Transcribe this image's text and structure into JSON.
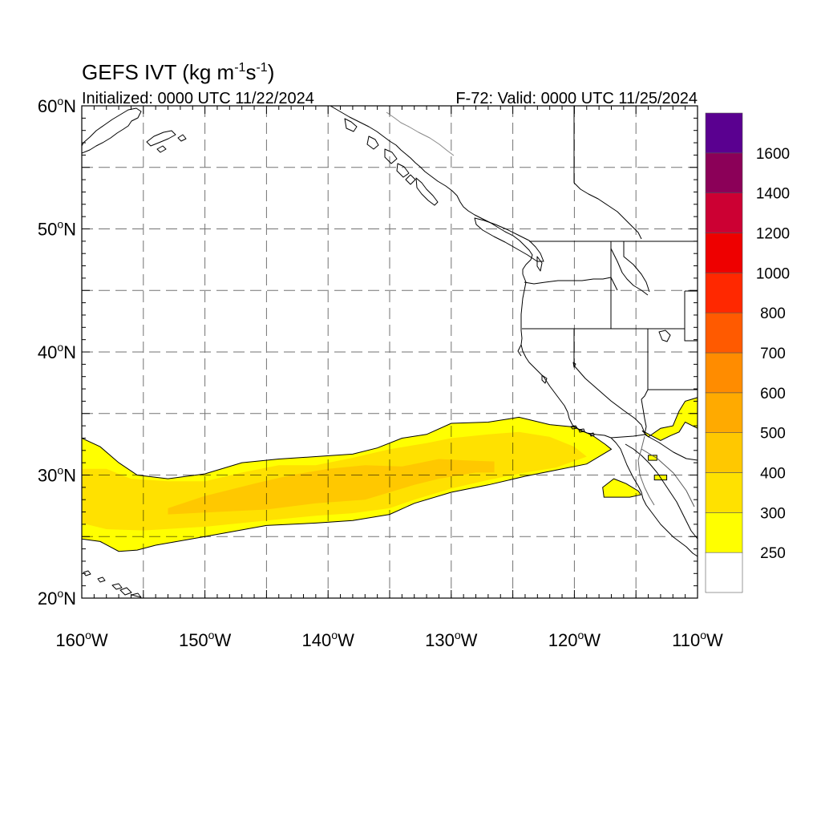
{
  "title": {
    "main": "GEFS IVT (kg m",
    "sup1": "-1",
    "mid": "s",
    "sup2": "-1",
    "close": ")"
  },
  "initialized": "Initialized: 0000 UTC 11/22/2024",
  "valid": "F-72: Valid: 0000 UTC 11/25/2024",
  "map": {
    "lon_range": [
      -160,
      -110
    ],
    "lat_range": [
      20,
      60
    ],
    "lon_labels": [
      {
        "lon": -160,
        "text": "160",
        "hemi": "W"
      },
      {
        "lon": -150,
        "text": "150",
        "hemi": "W"
      },
      {
        "lon": -140,
        "text": "140",
        "hemi": "W"
      },
      {
        "lon": -130,
        "text": "130",
        "hemi": "W"
      },
      {
        "lon": -120,
        "text": "120",
        "hemi": "W"
      },
      {
        "lon": -110,
        "text": "110",
        "hemi": "W"
      }
    ],
    "lat_labels": [
      {
        "lat": 60,
        "text": "60",
        "hemi": "N"
      },
      {
        "lat": 50,
        "text": "50",
        "hemi": "N"
      },
      {
        "lat": 40,
        "text": "40",
        "hemi": "N"
      },
      {
        "lat": 30,
        "text": "30",
        "hemi": "N"
      },
      {
        "lat": 20,
        "text": "20",
        "hemi": "N"
      }
    ],
    "grid_lons": [
      -155,
      -150,
      -145,
      -140,
      -135,
      -130,
      -125,
      -120,
      -115
    ],
    "grid_lats": [
      25,
      30,
      35,
      40,
      45,
      50,
      55
    ]
  },
  "colorbar": {
    "levels": [
      "250",
      "300",
      "400",
      "500",
      "600",
      "700",
      "800",
      "1000",
      "1200",
      "1400",
      "1600"
    ],
    "colors": [
      "#ffffff",
      "#ffff00",
      "#ffe100",
      "#ffc800",
      "#ffaa00",
      "#ff8c00",
      "#ff5a00",
      "#ff2800",
      "#ee0000",
      "#cc0033",
      "#8b0058",
      "#5a0090"
    ]
  },
  "ivt_regions": [
    {
      "level": "250-300",
      "color": "#ffff00",
      "points": [
        [
          -160,
          33.0
        ],
        [
          -158.5,
          32.3
        ],
        [
          -157,
          31.0
        ],
        [
          -155.5,
          30.0
        ],
        [
          -153,
          29.7
        ],
        [
          -150,
          30.1
        ],
        [
          -147,
          31.0
        ],
        [
          -144,
          31.3
        ],
        [
          -141,
          31.5
        ],
        [
          -138,
          31.7
        ],
        [
          -136,
          32.2
        ],
        [
          -134,
          33.0
        ],
        [
          -132,
          33.3
        ],
        [
          -130,
          34.2
        ],
        [
          -127,
          34.3
        ],
        [
          -124.5,
          34.7
        ],
        [
          -122,
          34.1
        ],
        [
          -120,
          33.9
        ],
        [
          -118.5,
          33.2
        ],
        [
          -117.5,
          32.5
        ],
        [
          -117,
          32.1
        ],
        [
          -119,
          30.9
        ],
        [
          -121.5,
          30.4
        ],
        [
          -124,
          29.9
        ],
        [
          -127,
          29.2
        ],
        [
          -130,
          28.6
        ],
        [
          -133,
          27.7
        ],
        [
          -135,
          26.8
        ],
        [
          -138,
          26.3
        ],
        [
          -141,
          26.1
        ],
        [
          -145,
          25.9
        ],
        [
          -150,
          25.0
        ],
        [
          -154,
          24.3
        ],
        [
          -155.5,
          23.9
        ],
        [
          -157,
          23.8
        ],
        [
          -158.5,
          24.6
        ],
        [
          -160,
          24.8
        ]
      ]
    },
    {
      "level": "250-300",
      "color": "#ffff00",
      "points": [
        [
          -114.5,
          33.6
        ],
        [
          -114,
          33.1
        ],
        [
          -113,
          33.8
        ],
        [
          -112,
          34.0
        ],
        [
          -111.5,
          35.2
        ],
        [
          -111,
          36.0
        ],
        [
          -110,
          36.3
        ],
        [
          -110,
          33.8
        ],
        [
          -111,
          34.3
        ],
        [
          -111.5,
          33.5
        ],
        [
          -112.2,
          33.2
        ],
        [
          -113,
          32.8
        ]
      ]
    },
    {
      "level": "250-300",
      "color": "#ffff00",
      "points": [
        [
          -117.7,
          29.0
        ],
        [
          -116.8,
          29.7
        ],
        [
          -115.8,
          29.3
        ],
        [
          -114.8,
          28.7
        ],
        [
          -114.6,
          28.4
        ],
        [
          -115.5,
          28.2
        ],
        [
          -117.6,
          28.2
        ]
      ]
    },
    {
      "level": "250-300",
      "color": "#ffff00",
      "points": [
        [
          -113.5,
          30.0
        ],
        [
          -112.5,
          30.0
        ],
        [
          -112.5,
          29.6
        ],
        [
          -113.5,
          29.6
        ]
      ]
    },
    {
      "level": "250-300",
      "color": "#ffff00",
      "points": [
        [
          -114,
          31.6
        ],
        [
          -113.3,
          31.6
        ],
        [
          -113.3,
          31.2
        ],
        [
          -114,
          31.2
        ]
      ]
    },
    {
      "level": "300-400",
      "color": "#ffe100",
      "points": [
        [
          -160,
          30.5
        ],
        [
          -158,
          30.5
        ],
        [
          -156,
          29.7
        ],
        [
          -153,
          29.5
        ],
        [
          -150,
          29.5
        ],
        [
          -147,
          30.2
        ],
        [
          -144,
          30.8
        ],
        [
          -141,
          30.8
        ],
        [
          -138,
          31.4
        ],
        [
          -135,
          32.1
        ],
        [
          -132,
          32.6
        ],
        [
          -130,
          33.0
        ],
        [
          -127,
          33.3
        ],
        [
          -124.5,
          33.5
        ],
        [
          -122,
          33.1
        ],
        [
          -120,
          32.3
        ],
        [
          -119,
          31.5
        ],
        [
          -121.5,
          30.6
        ],
        [
          -124,
          30.2
        ],
        [
          -127,
          29.6
        ],
        [
          -130,
          28.9
        ],
        [
          -133,
          28.0
        ],
        [
          -135,
          27.3
        ],
        [
          -138,
          26.9
        ],
        [
          -141,
          26.7
        ],
        [
          -145,
          26.3
        ],
        [
          -150,
          25.8
        ],
        [
          -155,
          25.5
        ],
        [
          -158,
          25.6
        ],
        [
          -160,
          26.1
        ]
      ]
    },
    {
      "level": "400-500",
      "color": "#ffc800",
      "points": [
        [
          -153,
          27.3
        ],
        [
          -150,
          28.3
        ],
        [
          -146,
          29.3
        ],
        [
          -143,
          30.0
        ],
        [
          -140,
          30.5
        ],
        [
          -137,
          30.8
        ],
        [
          -134,
          30.7
        ],
        [
          -131,
          31.3
        ],
        [
          -129,
          31.2
        ],
        [
          -126.5,
          31.1
        ],
        [
          -126.5,
          30.2
        ],
        [
          -128,
          30.2
        ],
        [
          -131,
          29.7
        ],
        [
          -133,
          29.2
        ],
        [
          -135,
          28.6
        ],
        [
          -137,
          28.0
        ],
        [
          -141,
          27.7
        ],
        [
          -145,
          27.2
        ],
        [
          -149,
          27.0
        ],
        [
          -153,
          26.8
        ]
      ]
    }
  ]
}
